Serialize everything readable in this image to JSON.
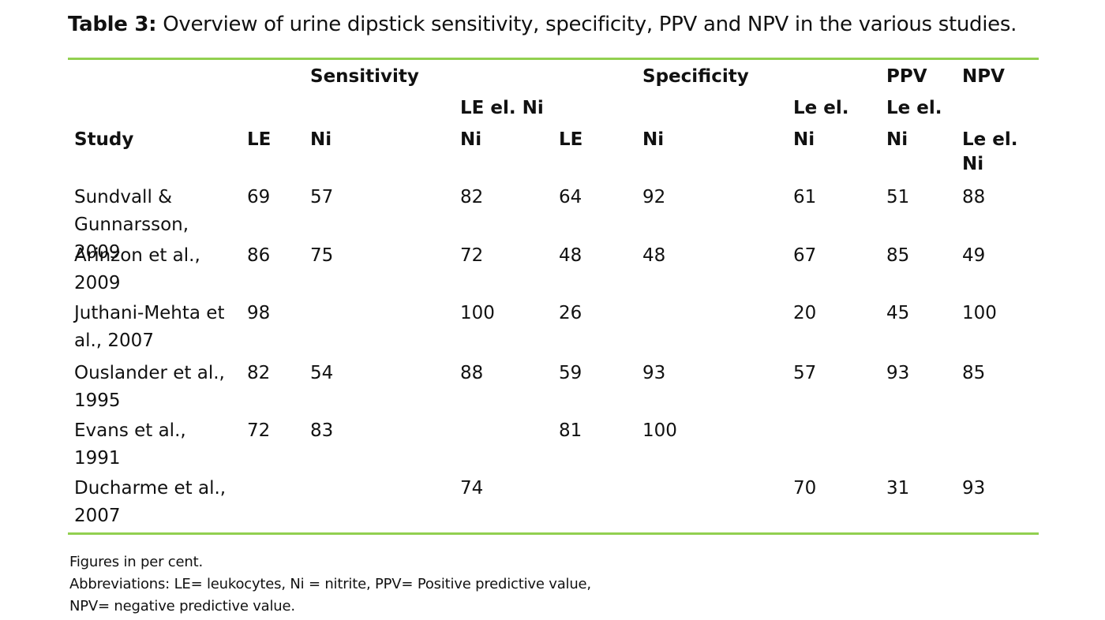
{
  "caption": {
    "label": "Table 3:",
    "text": "Overview of urine dipstick sensitivity, specificity, PPV and NPV in the various studies."
  },
  "colors": {
    "rule": "#92d050",
    "text": "#111111"
  },
  "header": {
    "group_sensitivity": "Sensitivity",
    "group_specificity": "Specificity",
    "group_ppv": "PPV",
    "group_npv": "NPV",
    "sens_le_ni_line1": "LE el. Ni",
    "sens_le_ni_line2": "Ni",
    "spec_le_ni_line1": "Le el.",
    "spec_le_ni_line2": "Ni",
    "ppv_line1": "Le el.",
    "ppv_line2": "Ni",
    "npv_sub": "Le el. Ni",
    "study": "Study",
    "sens_le": "LE",
    "sens_ni": "Ni",
    "spec_le": "LE",
    "spec_ni": "Ni"
  },
  "rows": [
    {
      "study": "Sundvall & Gunnarsson, 2009",
      "sens_le": "69",
      "sens_ni": "57",
      "sens_le_ni": "82",
      "spec_le": "64",
      "spec_ni": "92",
      "spec_le_ni": "61",
      "ppv": "51",
      "npv": "88"
    },
    {
      "study": "Arinzon et al., 2009",
      "sens_le": "86",
      "sens_ni": "75",
      "sens_le_ni": "72",
      "spec_le": "48",
      "spec_ni": "48",
      "spec_le_ni": "67",
      "ppv": "85",
      "npv": "49"
    },
    {
      "study": "Juthani-Mehta et al., 2007",
      "sens_le": "98",
      "sens_ni": "",
      "sens_le_ni": "100",
      "spec_le": "26",
      "spec_ni": "",
      "spec_le_ni": "20",
      "ppv": "45",
      "npv": "100"
    },
    {
      "study": "Ouslander et al., 1995",
      "sens_le": "82",
      "sens_ni": "54",
      "sens_le_ni": "88",
      "spec_le": "59",
      "spec_ni": "93",
      "spec_le_ni": "57",
      "ppv": "93",
      "npv": "85"
    },
    {
      "study": "Evans et al., 1991",
      "sens_le": "72",
      "sens_ni": "83",
      "sens_le_ni": "",
      "spec_le": "81",
      "spec_ni": "100",
      "spec_le_ni": "",
      "ppv": "",
      "npv": ""
    },
    {
      "study": "Ducharme et al., 2007",
      "sens_le": "",
      "sens_ni": "",
      "sens_le_ni": "74",
      "spec_le": "",
      "spec_ni": "",
      "spec_le_ni": "70",
      "ppv": "31",
      "npv": "93"
    }
  ],
  "footnotes": {
    "line1": "Figures in per cent.",
    "line2": "Abbreviations: LE= leukocytes, Ni = nitrite, PPV= Positive predictive value,",
    "line3": "NPV= negative predictive value."
  }
}
